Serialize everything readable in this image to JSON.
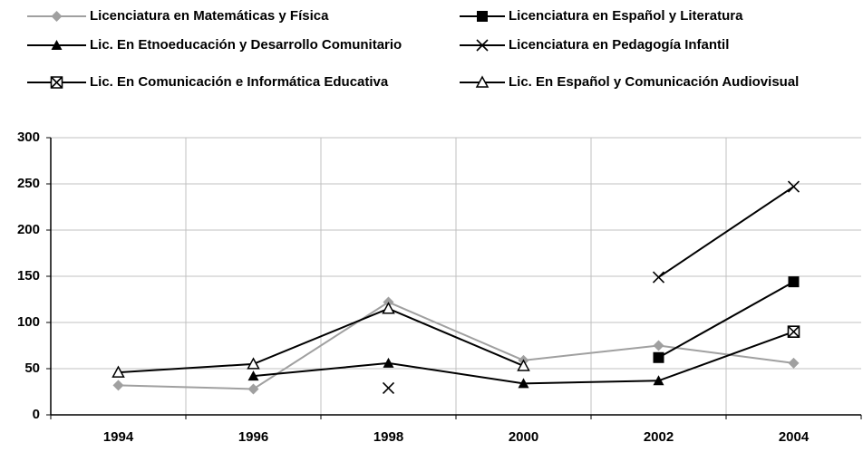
{
  "chart_data": {
    "type": "line",
    "categories": [
      "1994",
      "1996",
      "1998",
      "2000",
      "2002",
      "2004"
    ],
    "series": [
      {
        "name": "Licenciatura en Matemáticas y Física",
        "color": "#a0a0a0",
        "marker": "diamond",
        "values": [
          32,
          28,
          122,
          59,
          75,
          56
        ]
      },
      {
        "name": "Licenciatura en Español y Literatura",
        "color": "#000000",
        "marker": "square",
        "values": [
          null,
          null,
          null,
          null,
          62,
          144
        ]
      },
      {
        "name": "Lic. En Etnoeducación y Desarrollo Comunitario",
        "color": "#000000",
        "marker": "triangle",
        "values": [
          null,
          42,
          56,
          34,
          37,
          90
        ]
      },
      {
        "name": "Licenciatura en Pedagogía Infantil",
        "color": "#000000",
        "marker": "x",
        "values": [
          null,
          null,
          29,
          null,
          149,
          247
        ]
      },
      {
        "name": "Lic. En Comunicación e Informática Educativa",
        "color": "#000000",
        "marker": "xsquare",
        "values": [
          null,
          null,
          null,
          null,
          null,
          90
        ]
      },
      {
        "name": "Lic. En Español y Comunicación Audiovisual",
        "color": "#000000",
        "marker": "triangle-open",
        "values": [
          46,
          55,
          115,
          53,
          null,
          null
        ]
      }
    ],
    "ylim": [
      0,
      300
    ],
    "yticks": [
      0,
      50,
      100,
      150,
      200,
      250,
      300
    ],
    "grid": true,
    "legend": "top"
  }
}
